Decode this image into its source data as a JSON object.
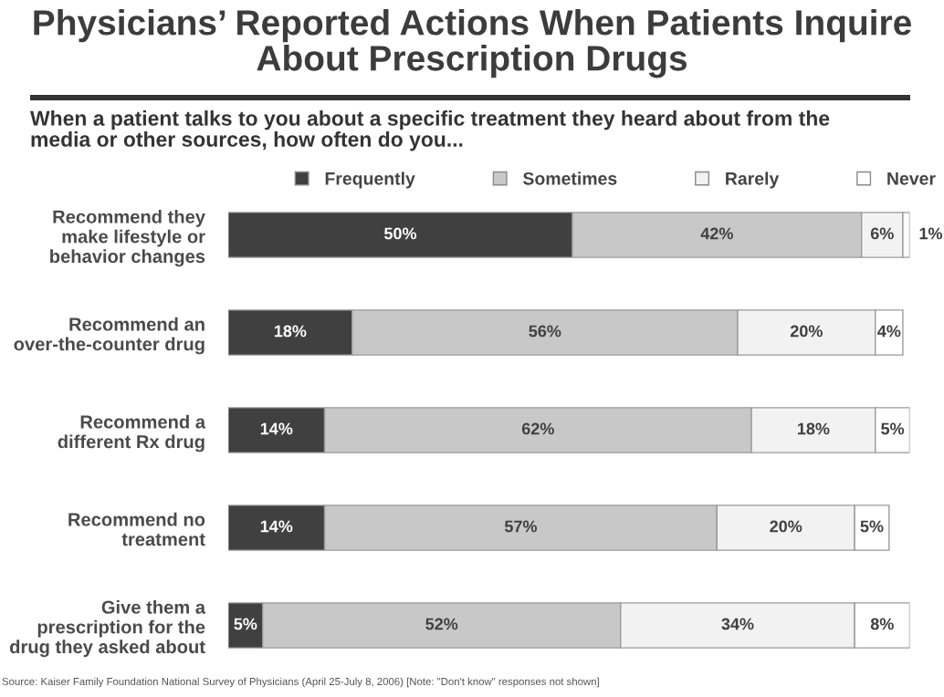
{
  "chart_data": {
    "type": "bar",
    "orientation": "horizontal",
    "stacked": true,
    "title": "Physicians’ Reported Actions When Patients Inquire About Prescription Drugs",
    "subtitle": "When a patient talks to you about a specific treatment they heard about from the media or other sources, how often do you...",
    "categories": [
      "Recommend they\nmake lifestyle or\nbehavior changes",
      "Recommend an\nover-the-counter drug",
      "Recommend a\ndifferent Rx drug",
      "Recommend no\ntreatment",
      "Give them a\nprescription for the\ndrug they asked about"
    ],
    "series": [
      {
        "name": "Frequently",
        "color": "#404040",
        "values": [
          50,
          18,
          14,
          14,
          5
        ],
        "value_labels": [
          "50%",
          "18%",
          "14%",
          "14%",
          "5%"
        ]
      },
      {
        "name": "Sometimes",
        "color": "#c8c8c8",
        "values": [
          42,
          56,
          62,
          57,
          52
        ],
        "value_labels": [
          "42%",
          "56%",
          "62%",
          "57%",
          "52%"
        ]
      },
      {
        "name": "Rarely",
        "color": "#f2f2f2",
        "values": [
          6,
          20,
          18,
          20,
          34
        ],
        "value_labels": [
          "6%",
          "20%",
          "18%",
          "20%",
          "34%"
        ]
      },
      {
        "name": "Never",
        "color": "#ffffff",
        "values": [
          1,
          4,
          5,
          5,
          8
        ],
        "value_labels": [
          "1%",
          "4%",
          "5%",
          "5%",
          "8%"
        ]
      }
    ],
    "legend": "top",
    "tick_labels": "y",
    "annotations": [
      "Source: Kaiser Family Foundation National Survey of Physicians (April 25-July 8, 2006) [Note: \"Don't know\" responses not shown]"
    ]
  }
}
